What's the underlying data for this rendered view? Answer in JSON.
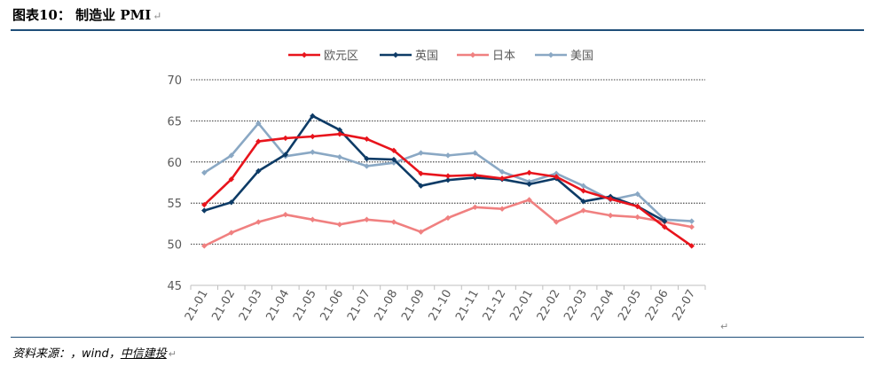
{
  "header": {
    "title": "图表10： 制造业 PMI",
    "return_mark": "↵"
  },
  "footer": {
    "source_prefix": "资料来源：，wind，",
    "source_org": "中信建投",
    "return_mark": "↵"
  },
  "chart_return_mark": "↵",
  "chart_data": {
    "type": "line",
    "title": "",
    "xlabel": "",
    "ylabel": "",
    "ylim": [
      45,
      70
    ],
    "yticks": [
      "70",
      "65",
      "60",
      "55",
      "50",
      "45"
    ],
    "grid": true,
    "legend_position": "top",
    "categories": [
      "21-01",
      "21-02",
      "21-03",
      "21-04",
      "21-05",
      "21-06",
      "21-07",
      "21-08",
      "21-09",
      "21-10",
      "21-11",
      "21-12",
      "22-01",
      "22-02",
      "22-03",
      "22-04",
      "22-05",
      "22-06",
      "22-07"
    ],
    "series": [
      {
        "name": "欧元区",
        "color": "#e8141c",
        "values": [
          54.8,
          57.9,
          62.5,
          62.9,
          63.1,
          63.4,
          62.8,
          61.4,
          58.6,
          58.3,
          58.4,
          58.0,
          58.7,
          58.2,
          56.5,
          55.5,
          54.6,
          52.1,
          49.8
        ]
      },
      {
        "name": "英国",
        "color": "#0d3b66",
        "values": [
          54.1,
          55.1,
          58.9,
          60.9,
          65.6,
          63.9,
          60.4,
          60.3,
          57.1,
          57.8,
          58.1,
          57.9,
          57.3,
          58.0,
          55.2,
          55.8,
          54.6,
          52.8,
          null
        ]
      },
      {
        "name": "日本",
        "color": "#f08080",
        "values": [
          49.8,
          51.4,
          52.7,
          53.6,
          53.0,
          52.4,
          53.0,
          52.7,
          51.5,
          53.2,
          54.5,
          54.3,
          55.4,
          52.7,
          54.1,
          53.5,
          53.3,
          52.7,
          52.1
        ]
      },
      {
        "name": "美国",
        "color": "#8aa8c4",
        "values": [
          58.7,
          60.8,
          64.7,
          60.7,
          61.2,
          60.6,
          59.5,
          59.9,
          61.1,
          60.8,
          61.1,
          58.8,
          57.6,
          58.6,
          57.1,
          55.4,
          56.1,
          53.0,
          52.8
        ]
      }
    ]
  }
}
